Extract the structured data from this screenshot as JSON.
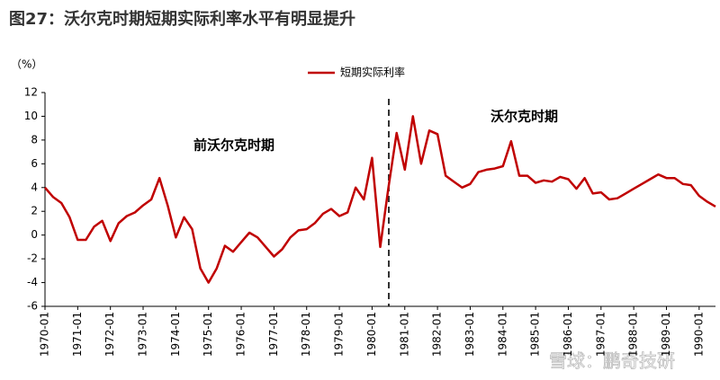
{
  "chart_data": {
    "type": "line",
    "title": "图27：沃尔克时期短期实际利率水平有明显提升",
    "y_label": "（%）",
    "annotations": [
      "前沃尔克时期",
      "沃尔克时期"
    ],
    "watermark": "雪球：鹏奇技研",
    "categories": [
      "1970-01",
      null,
      null,
      null,
      "1971-01",
      null,
      null,
      null,
      "1972-01",
      null,
      null,
      null,
      "1973-01",
      null,
      null,
      null,
      "1974-01",
      null,
      null,
      null,
      "1975-01",
      null,
      null,
      null,
      "1976-01",
      null,
      null,
      null,
      "1977-01",
      null,
      null,
      null,
      "1978-01",
      null,
      null,
      null,
      "1979-01",
      null,
      null,
      null,
      "1980-01",
      null,
      null,
      null,
      "1981-01",
      null,
      null,
      null,
      "1982-01",
      null,
      null,
      null,
      "1983-01",
      null,
      null,
      null,
      "1984-01",
      null,
      null,
      null,
      "1985-01",
      null,
      null,
      null,
      "1986-01",
      null,
      null,
      null,
      "1987-01",
      null,
      null,
      null,
      "1988-01",
      null,
      null,
      null,
      "1989-01",
      null,
      null,
      null,
      "1990-01",
      null,
      null
    ],
    "series": [
      {
        "name": "短期实际利率",
        "color": "#c00000",
        "values": [
          4.0,
          3.2,
          2.7,
          1.5,
          -0.4,
          -0.4,
          0.7,
          1.2,
          -0.5,
          1.0,
          1.6,
          1.9,
          2.5,
          3.0,
          4.8,
          2.5,
          -0.2,
          1.5,
          0.5,
          -2.8,
          -4.0,
          -2.8,
          -0.9,
          -1.4,
          -0.6,
          0.2,
          -0.2,
          -1.0,
          -1.8,
          -1.2,
          -0.2,
          0.4,
          0.5,
          1.0,
          1.8,
          2.2,
          1.6,
          1.9,
          4.0,
          3.0,
          6.5,
          -1.0,
          4.0,
          8.6,
          5.5,
          10.0,
          6.0,
          8.8,
          8.5,
          5.0,
          4.5,
          4.0,
          4.3,
          5.3,
          5.5,
          5.6,
          5.8,
          7.9,
          5.0,
          5.0,
          4.4,
          4.6,
          4.5,
          4.9,
          4.7,
          3.9,
          4.8,
          3.5,
          3.6,
          3.0,
          3.1,
          3.5,
          3.9,
          4.3,
          4.7,
          5.1,
          4.8,
          4.8,
          4.3,
          4.2,
          3.3,
          2.8,
          2.4
        ]
      }
    ],
    "ylim": [
      -6,
      12
    ],
    "yticks": [
      -6,
      -4,
      -2,
      0,
      2,
      4,
      6,
      8,
      10,
      12
    ],
    "grid": false
  }
}
